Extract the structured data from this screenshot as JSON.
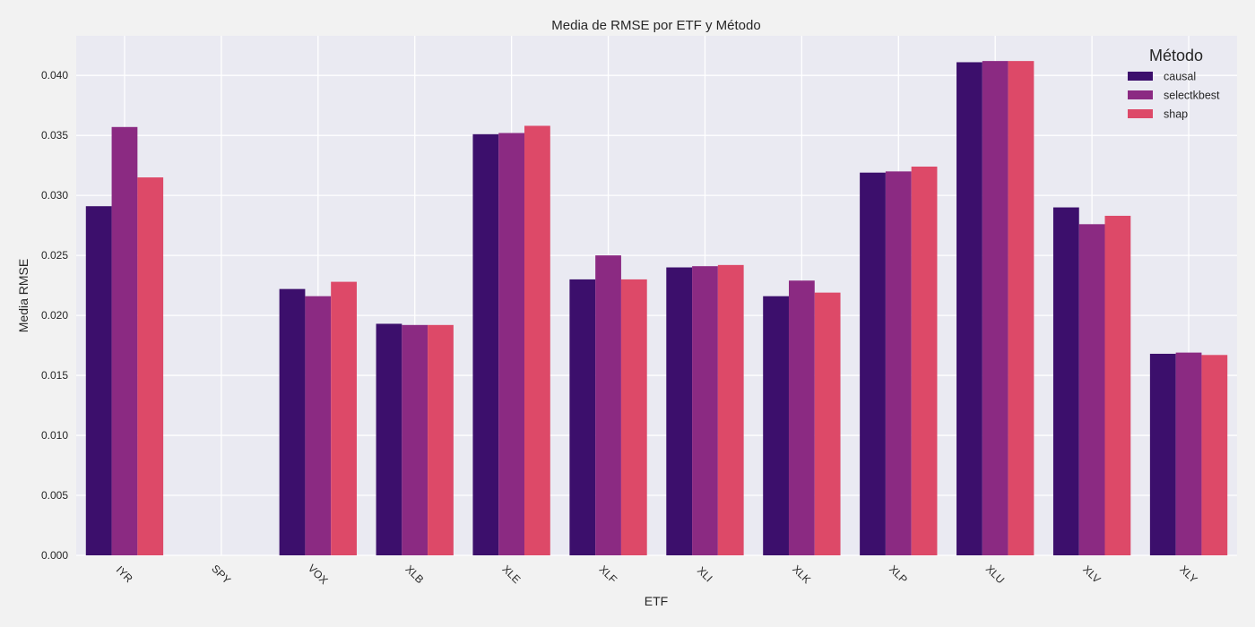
{
  "chart_data": {
    "type": "bar",
    "title": "Media de RMSE por ETF y Método",
    "xlabel": "ETF",
    "ylabel": "Media RMSE",
    "ylim": [
      0,
      0.0433
    ],
    "yticks": [
      "0.000",
      "0.005",
      "0.010",
      "0.015",
      "0.020",
      "0.025",
      "0.030",
      "0.035",
      "0.040"
    ],
    "grid": true,
    "legend": {
      "title": "Método",
      "placement": "top-right"
    },
    "categories": [
      "IYR",
      "SPY",
      "VOX",
      "XLB",
      "XLE",
      "XLF",
      "XLI",
      "XLK",
      "XLP",
      "XLU",
      "XLV",
      "XLY"
    ],
    "series": [
      {
        "name": "causal",
        "color": "#3c0f6c",
        "values": [
          0.0291,
          0,
          0.0222,
          0.0193,
          0.0351,
          0.023,
          0.024,
          0.0216,
          0.0319,
          0.0411,
          0.029,
          0.0168
        ]
      },
      {
        "name": "selectkbest",
        "color": "#8b2a82",
        "values": [
          0.0357,
          0,
          0.0216,
          0.0192,
          0.0352,
          0.025,
          0.0241,
          0.0229,
          0.032,
          0.0412,
          0.0276,
          0.0169
        ]
      },
      {
        "name": "shap",
        "color": "#dd4968",
        "values": [
          0.0315,
          0,
          0.0228,
          0.0192,
          0.0358,
          0.023,
          0.0242,
          0.0219,
          0.0324,
          0.0412,
          0.0283,
          0.0167
        ]
      }
    ]
  }
}
